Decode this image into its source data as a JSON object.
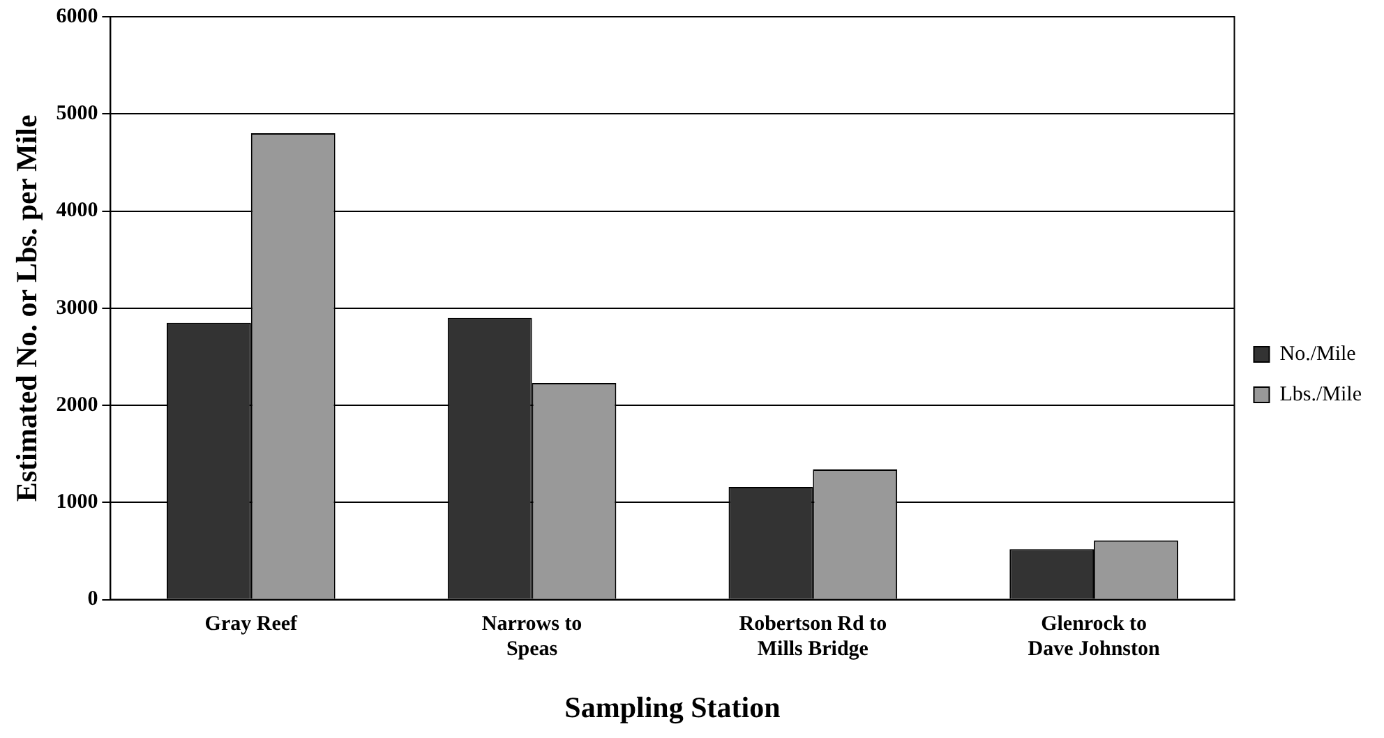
{
  "chart_data": {
    "type": "bar",
    "xlabel": "Sampling Station",
    "ylabel": "Estimated No. or Lbs. per Mile",
    "categories": [
      "Gray Reef",
      "Narrows to Speas",
      "Robertson Rd to Mills Bridge",
      "Glenrock to Dave Johnston"
    ],
    "series": [
      {
        "name": "No./Mile",
        "color": "#333333",
        "values": [
          2850,
          2900,
          1160,
          520
        ]
      },
      {
        "name": "Lbs./Mile",
        "color": "#999999",
        "values": [
          4800,
          2230,
          1340,
          610
        ]
      }
    ],
    "ylim": [
      0,
      6000
    ],
    "yticks": [
      0,
      1000,
      2000,
      3000,
      4000,
      5000,
      6000
    ],
    "grid": "y",
    "legend": "right"
  }
}
